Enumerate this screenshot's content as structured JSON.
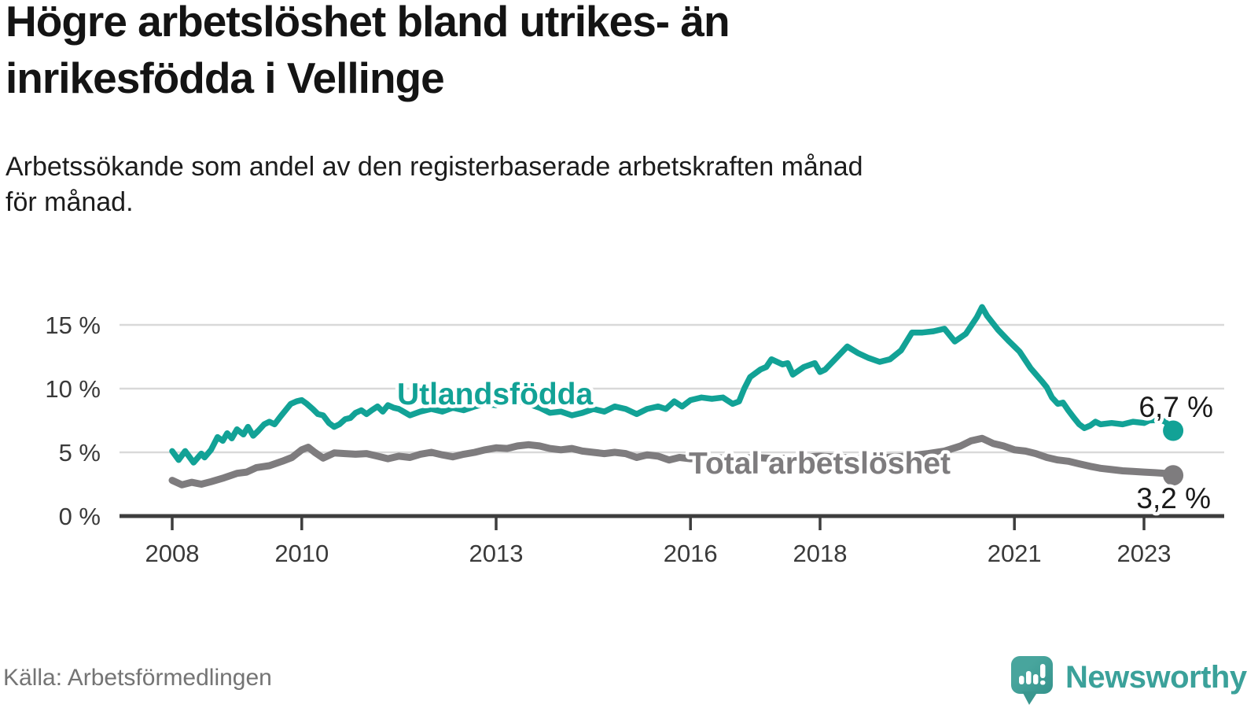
{
  "header": {
    "title_lines": [
      "Högre arbetslöshet bland utrikes- än",
      "inrikesfödda i Vellinge"
    ],
    "subtitle_lines": [
      "Arbetssökande som andel av den registerbaserade arbetskraften månad",
      "för månad."
    ]
  },
  "chart_data": {
    "type": "line",
    "title": "Högre arbetslöshet bland utrikes- än inrikesfödda i Vellinge",
    "xlabel": "",
    "ylabel": "Arbetssökande som andel av den registerbaserade arbetskraften",
    "unit": "%",
    "grid": "horizontal",
    "legend_position": "inline-labels",
    "x_axis": {
      "range": [
        2008,
        2023.75
      ],
      "ticks": [
        {
          "year": 2008,
          "label": "2008"
        },
        {
          "year": 2010,
          "label": "2010"
        },
        {
          "year": 2013,
          "label": "2013"
        },
        {
          "year": 2016,
          "label": "2016"
        },
        {
          "year": 2018,
          "label": "2018"
        },
        {
          "year": 2021,
          "label": "2021"
        },
        {
          "year": 2023,
          "label": "2023"
        }
      ]
    },
    "y_axis": {
      "range": [
        0,
        17
      ],
      "ticks": [
        {
          "value": 0,
          "label": "0 %"
        },
        {
          "value": 5,
          "label": "5 %"
        },
        {
          "value": 10,
          "label": "10 %"
        },
        {
          "value": 15,
          "label": "15 %"
        }
      ]
    },
    "series": [
      {
        "name": "Utlandsfödda",
        "color": "#12a296",
        "end_value": 6.7,
        "end_label": "6,7 %",
        "points": [
          [
            2008.0,
            5.1
          ],
          [
            2008.1,
            4.4
          ],
          [
            2008.2,
            5.1
          ],
          [
            2008.33,
            4.2
          ],
          [
            2008.45,
            4.9
          ],
          [
            2008.5,
            4.6
          ],
          [
            2008.6,
            5.2
          ],
          [
            2008.7,
            6.2
          ],
          [
            2008.78,
            5.9
          ],
          [
            2008.85,
            6.5
          ],
          [
            2008.92,
            6.1
          ],
          [
            2009.0,
            6.8
          ],
          [
            2009.1,
            6.4
          ],
          [
            2009.17,
            7.0
          ],
          [
            2009.25,
            6.3
          ],
          [
            2009.33,
            6.7
          ],
          [
            2009.42,
            7.2
          ],
          [
            2009.5,
            7.4
          ],
          [
            2009.58,
            7.2
          ],
          [
            2009.67,
            7.8
          ],
          [
            2009.75,
            8.3
          ],
          [
            2009.83,
            8.8
          ],
          [
            2009.92,
            9.0
          ],
          [
            2010.0,
            9.1
          ],
          [
            2010.08,
            8.8
          ],
          [
            2010.17,
            8.4
          ],
          [
            2010.25,
            8.0
          ],
          [
            2010.33,
            7.9
          ],
          [
            2010.42,
            7.3
          ],
          [
            2010.5,
            7.0
          ],
          [
            2010.58,
            7.2
          ],
          [
            2010.67,
            7.6
          ],
          [
            2010.75,
            7.7
          ],
          [
            2010.83,
            8.1
          ],
          [
            2010.92,
            8.3
          ],
          [
            2011.0,
            8.0
          ],
          [
            2011.08,
            8.3
          ],
          [
            2011.17,
            8.6
          ],
          [
            2011.25,
            8.2
          ],
          [
            2011.33,
            8.7
          ],
          [
            2011.42,
            8.5
          ],
          [
            2011.5,
            8.4
          ],
          [
            2011.67,
            7.9
          ],
          [
            2011.83,
            8.2
          ],
          [
            2012.0,
            8.4
          ],
          [
            2012.17,
            8.2
          ],
          [
            2012.33,
            8.5
          ],
          [
            2012.5,
            8.3
          ],
          [
            2012.67,
            8.6
          ],
          [
            2012.83,
            8.8
          ],
          [
            2013.0,
            8.7
          ],
          [
            2013.17,
            8.9
          ],
          [
            2013.33,
            9.0
          ],
          [
            2013.5,
            8.8
          ],
          [
            2013.67,
            8.5
          ],
          [
            2013.83,
            8.1
          ],
          [
            2014.0,
            8.2
          ],
          [
            2014.17,
            7.9
          ],
          [
            2014.33,
            8.1
          ],
          [
            2014.5,
            8.4
          ],
          [
            2014.67,
            8.2
          ],
          [
            2014.83,
            8.6
          ],
          [
            2015.0,
            8.4
          ],
          [
            2015.17,
            8.0
          ],
          [
            2015.33,
            8.4
          ],
          [
            2015.5,
            8.6
          ],
          [
            2015.62,
            8.4
          ],
          [
            2015.75,
            9.0
          ],
          [
            2015.87,
            8.6
          ],
          [
            2016.0,
            9.1
          ],
          [
            2016.17,
            9.3
          ],
          [
            2016.33,
            9.2
          ],
          [
            2016.5,
            9.3
          ],
          [
            2016.65,
            8.8
          ],
          [
            2016.75,
            9.0
          ],
          [
            2016.83,
            10.0
          ],
          [
            2016.92,
            10.9
          ],
          [
            2017.08,
            11.5
          ],
          [
            2017.17,
            11.7
          ],
          [
            2017.25,
            12.3
          ],
          [
            2017.42,
            11.9
          ],
          [
            2017.5,
            12.0
          ],
          [
            2017.58,
            11.1
          ],
          [
            2017.75,
            11.7
          ],
          [
            2017.92,
            12.0
          ],
          [
            2018.0,
            11.3
          ],
          [
            2018.08,
            11.5
          ],
          [
            2018.25,
            12.4
          ],
          [
            2018.42,
            13.3
          ],
          [
            2018.58,
            12.8
          ],
          [
            2018.75,
            12.4
          ],
          [
            2018.92,
            12.1
          ],
          [
            2019.08,
            12.3
          ],
          [
            2019.25,
            13.0
          ],
          [
            2019.42,
            14.4
          ],
          [
            2019.58,
            14.4
          ],
          [
            2019.75,
            14.5
          ],
          [
            2019.92,
            14.7
          ],
          [
            2020.08,
            13.7
          ],
          [
            2020.25,
            14.3
          ],
          [
            2020.42,
            15.6
          ],
          [
            2020.5,
            16.4
          ],
          [
            2020.58,
            15.7
          ],
          [
            2020.75,
            14.6
          ],
          [
            2020.92,
            13.7
          ],
          [
            2021.0,
            13.3
          ],
          [
            2021.08,
            12.9
          ],
          [
            2021.25,
            11.6
          ],
          [
            2021.42,
            10.6
          ],
          [
            2021.5,
            10.1
          ],
          [
            2021.58,
            9.3
          ],
          [
            2021.67,
            8.8
          ],
          [
            2021.75,
            8.9
          ],
          [
            2021.83,
            8.3
          ],
          [
            2021.92,
            7.7
          ],
          [
            2022.0,
            7.2
          ],
          [
            2022.08,
            6.9
          ],
          [
            2022.17,
            7.1
          ],
          [
            2022.25,
            7.4
          ],
          [
            2022.33,
            7.2
          ],
          [
            2022.5,
            7.3
          ],
          [
            2022.67,
            7.2
          ],
          [
            2022.83,
            7.4
          ],
          [
            2023.0,
            7.3
          ],
          [
            2023.08,
            7.5
          ],
          [
            2023.25,
            7.55
          ],
          [
            2023.33,
            7.4
          ],
          [
            2023.45,
            6.7
          ]
        ]
      },
      {
        "name": "Total arbetslöshet",
        "color": "#7e7c7e",
        "end_value": 3.2,
        "end_label": "3,2 %",
        "points": [
          [
            2008.0,
            2.8
          ],
          [
            2008.15,
            2.45
          ],
          [
            2008.3,
            2.65
          ],
          [
            2008.45,
            2.5
          ],
          [
            2008.6,
            2.7
          ],
          [
            2008.8,
            3.0
          ],
          [
            2009.0,
            3.35
          ],
          [
            2009.15,
            3.45
          ],
          [
            2009.3,
            3.8
          ],
          [
            2009.5,
            3.95
          ],
          [
            2009.7,
            4.3
          ],
          [
            2009.85,
            4.6
          ],
          [
            2010.0,
            5.2
          ],
          [
            2010.1,
            5.4
          ],
          [
            2010.2,
            5.0
          ],
          [
            2010.33,
            4.55
          ],
          [
            2010.5,
            4.95
          ],
          [
            2010.67,
            4.9
          ],
          [
            2010.83,
            4.85
          ],
          [
            2011.0,
            4.9
          ],
          [
            2011.17,
            4.7
          ],
          [
            2011.33,
            4.5
          ],
          [
            2011.5,
            4.7
          ],
          [
            2011.67,
            4.6
          ],
          [
            2011.83,
            4.85
          ],
          [
            2012.0,
            5.0
          ],
          [
            2012.17,
            4.8
          ],
          [
            2012.33,
            4.65
          ],
          [
            2012.5,
            4.85
          ],
          [
            2012.67,
            5.0
          ],
          [
            2012.83,
            5.2
          ],
          [
            2013.0,
            5.35
          ],
          [
            2013.17,
            5.3
          ],
          [
            2013.33,
            5.5
          ],
          [
            2013.5,
            5.6
          ],
          [
            2013.67,
            5.5
          ],
          [
            2013.83,
            5.3
          ],
          [
            2014.0,
            5.2
          ],
          [
            2014.17,
            5.3
          ],
          [
            2014.33,
            5.1
          ],
          [
            2014.5,
            5.0
          ],
          [
            2014.67,
            4.9
          ],
          [
            2014.83,
            5.0
          ],
          [
            2015.0,
            4.9
          ],
          [
            2015.17,
            4.6
          ],
          [
            2015.33,
            4.8
          ],
          [
            2015.5,
            4.7
          ],
          [
            2015.67,
            4.4
          ],
          [
            2015.83,
            4.6
          ],
          [
            2016.0,
            4.5
          ],
          [
            2016.33,
            4.6
          ],
          [
            2016.67,
            4.5
          ],
          [
            2017.0,
            4.6
          ],
          [
            2017.33,
            4.5
          ],
          [
            2017.67,
            4.6
          ],
          [
            2018.0,
            4.7
          ],
          [
            2018.33,
            4.6
          ],
          [
            2018.67,
            4.5
          ],
          [
            2019.0,
            4.6
          ],
          [
            2019.33,
            4.7
          ],
          [
            2019.67,
            4.9
          ],
          [
            2019.92,
            5.1
          ],
          [
            2020.17,
            5.5
          ],
          [
            2020.33,
            5.9
          ],
          [
            2020.5,
            6.1
          ],
          [
            2020.67,
            5.7
          ],
          [
            2020.83,
            5.5
          ],
          [
            2021.0,
            5.2
          ],
          [
            2021.17,
            5.1
          ],
          [
            2021.33,
            4.9
          ],
          [
            2021.5,
            4.6
          ],
          [
            2021.67,
            4.4
          ],
          [
            2021.83,
            4.3
          ],
          [
            2022.0,
            4.1
          ],
          [
            2022.17,
            3.9
          ],
          [
            2022.33,
            3.75
          ],
          [
            2022.5,
            3.65
          ],
          [
            2022.67,
            3.55
          ],
          [
            2022.83,
            3.5
          ],
          [
            2023.0,
            3.45
          ],
          [
            2023.17,
            3.4
          ],
          [
            2023.33,
            3.35
          ],
          [
            2023.45,
            3.2
          ]
        ]
      }
    ]
  },
  "footer": {
    "source": "Källa: Arbetsförmedlingen",
    "brand": "Newsworthy",
    "brand_icon": "newsworthy-speech-bubble-bar-chart-icon",
    "brand_color": "#3ba19a"
  },
  "colors": {
    "utlandsfodda_line": "#12a296",
    "total_line": "#7e7c7e",
    "grid": "#d9d9d9",
    "axis": "#3d3d3d",
    "axis_text": "#3a3a3a",
    "value_text": "#1a1a1a"
  }
}
